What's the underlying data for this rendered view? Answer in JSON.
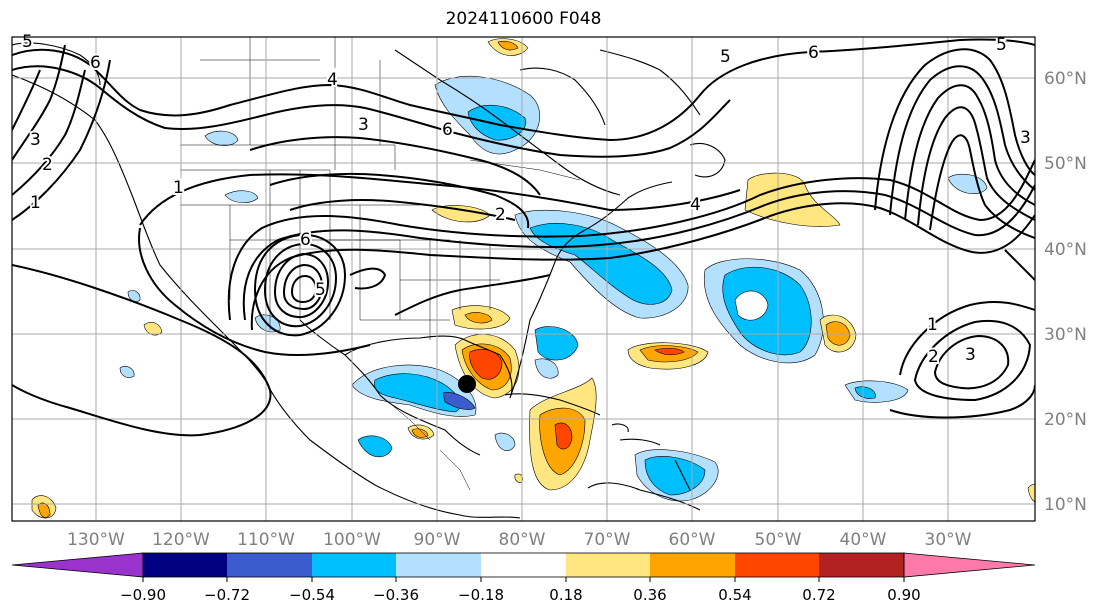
{
  "title": "2024110600 F048",
  "lon_labels": [
    "130°W",
    "120°W",
    "110°W",
    "100°W",
    "90°W",
    "80°W",
    "70°W",
    "60°W",
    "50°W",
    "40°W",
    "30°W"
  ],
  "lat_labels": [
    "60°N",
    "50°N",
    "40°N",
    "30°N",
    "20°N",
    "10°N"
  ],
  "colorbar": {
    "colors": [
      "#9933cc",
      "#000080",
      "#3a5ccc",
      "#00bfff",
      "#b3e0ff",
      "#ffffff",
      "#ffe680",
      "#ffa500",
      "#ff4500",
      "#b22222",
      "#ff7aa8"
    ],
    "ticks": [
      "−0.90",
      "−0.72",
      "−0.54",
      "−0.36",
      "−0.18",
      "0.18",
      "0.36",
      "0.54",
      "0.72",
      "0.90"
    ]
  },
  "contour_labels": [
    "5",
    "6",
    "3",
    "2",
    "1",
    "6",
    "5",
    "4",
    "3",
    "2",
    "1",
    "5",
    "6",
    "6",
    "5",
    "4",
    "3",
    "3",
    "2",
    "1"
  ],
  "marker": "storm-center"
}
